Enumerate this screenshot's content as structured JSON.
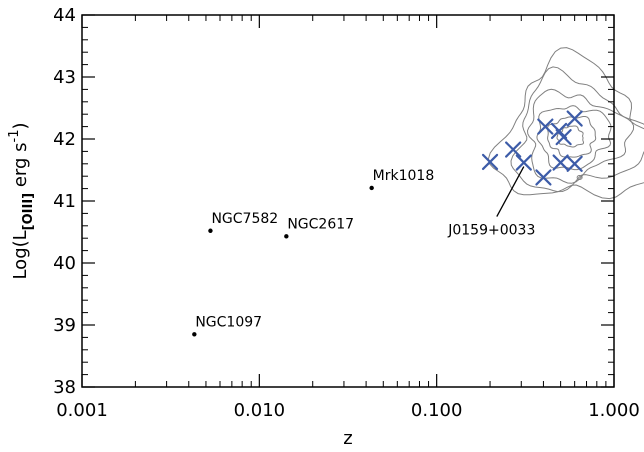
{
  "chart_data": {
    "type": "scatter",
    "xscale": "log",
    "xlabel": "z",
    "ylabel": {
      "prefix": "Log(L",
      "subscript": "[OIII]",
      "suffix": " erg s",
      "superscript": "-1",
      "close": ")"
    },
    "xlim": [
      0.001,
      1.0
    ],
    "ylim": [
      38,
      44
    ],
    "x_ticks": [
      {
        "value": 0.001,
        "label": "0.001"
      },
      {
        "value": 0.01,
        "label": "0.010"
      },
      {
        "value": 0.1,
        "label": "0.100"
      },
      {
        "value": 1.0,
        "label": "1.000"
      }
    ],
    "y_ticks": [
      {
        "value": 38,
        "label": "38"
      },
      {
        "value": 39,
        "label": "39"
      },
      {
        "value": 40,
        "label": "40"
      },
      {
        "value": 41,
        "label": "41"
      },
      {
        "value": 42,
        "label": "42"
      },
      {
        "value": 43,
        "label": "43"
      },
      {
        "value": 44,
        "label": "44"
      }
    ],
    "grid": false,
    "named_points": [
      {
        "label": "NGC1097",
        "x": 0.0043,
        "y": 38.85
      },
      {
        "label": "NGC7582",
        "x": 0.0053,
        "y": 40.52
      },
      {
        "label": "NGC2617",
        "x": 0.0142,
        "y": 40.43
      },
      {
        "label": "Mrk1018",
        "x": 0.043,
        "y": 41.21
      }
    ],
    "x_markers": {
      "color": "#3d5ca8",
      "points": [
        {
          "x": 0.2,
          "y": 41.63
        },
        {
          "x": 0.27,
          "y": 41.83
        },
        {
          "x": 0.31,
          "y": 41.62
        },
        {
          "x": 0.4,
          "y": 41.38
        },
        {
          "x": 0.41,
          "y": 42.2
        },
        {
          "x": 0.49,
          "y": 42.13
        },
        {
          "x": 0.52,
          "y": 42.03
        },
        {
          "x": 0.5,
          "y": 41.62
        },
        {
          "x": 0.6,
          "y": 42.33
        },
        {
          "x": 0.6,
          "y": 41.6
        }
      ]
    },
    "annotation": {
      "label": "J0159+0033",
      "points_to": {
        "x": 0.31,
        "y": 41.62
      }
    },
    "contours": {
      "color": "#808080",
      "center": {
        "x": 0.52,
        "y": 42.0
      }
    }
  }
}
